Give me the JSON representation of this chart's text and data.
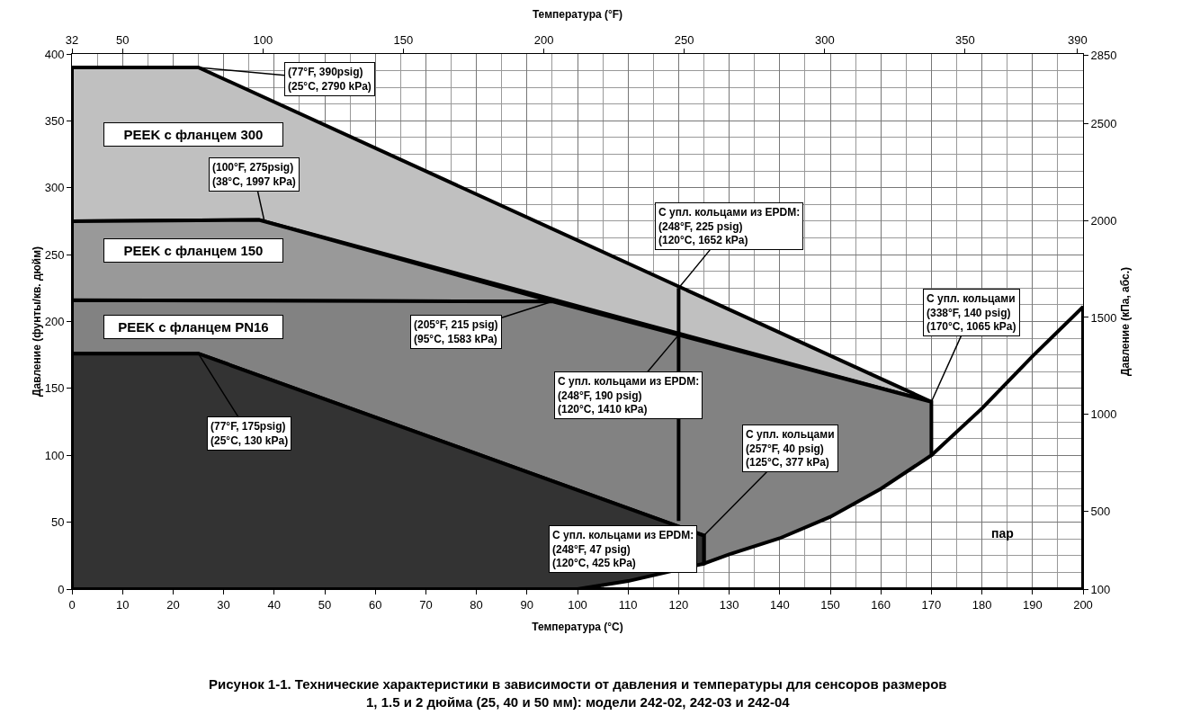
{
  "chart_data": {
    "type": "area",
    "title": "Рисунок 1-1. Технические характеристики в зависимости от давления и температуры для сенсоров размеров\n1, 1.5 и 2 дюйма (25, 40 и 50 мм): модели 242-02, 242-03 и 242-04",
    "xlabel": "Температура (°C)",
    "ylabel": "Давление (фунты/кв. дюйм)",
    "x2label": "Температура (°F)",
    "y2label": "Давление (кПа, абс.)",
    "xlim": [
      0,
      200
    ],
    "xticks": [
      0,
      10,
      20,
      30,
      40,
      50,
      60,
      70,
      80,
      90,
      100,
      110,
      120,
      130,
      140,
      150,
      160,
      170,
      180,
      190,
      200
    ],
    "ylim": [
      0,
      400
    ],
    "yticks": [
      0,
      50,
      100,
      150,
      200,
      250,
      300,
      350,
      400
    ],
    "x2lim": [
      32,
      392
    ],
    "x2ticks": [
      32,
      50,
      100,
      150,
      200,
      250,
      300,
      350,
      390
    ],
    "y2lim": [
      100,
      2858
    ],
    "y2ticks": [
      100,
      500,
      1000,
      1500,
      2000,
      2500,
      2850
    ],
    "grid": true,
    "legend": false,
    "series": [
      {
        "name": "PEEK с фланцем 300",
        "color": "#c0c0c0",
        "x": [
          0,
          25,
          170,
          37,
          0,
          0
        ],
        "values": [
          390,
          390,
          140,
          276,
          275,
          390
        ]
      },
      {
        "name": "PEEK с фланцем 150",
        "color": "#999999",
        "x": [
          0,
          37,
          95,
          0,
          0
        ],
        "values": [
          275,
          276,
          215,
          216,
          275
        ]
      },
      {
        "name": "PEEK с фланцем PN16",
        "color": "#828282",
        "x": [
          0,
          95,
          170,
          170,
          160,
          150,
          140,
          130,
          125,
          125,
          25,
          0,
          0
        ],
        "values": [
          216,
          215,
          140,
          100,
          75,
          54,
          38,
          26,
          19,
          40,
          176,
          176,
          216
        ]
      },
      {
        "color": "#333333",
        "x": [
          0,
          25,
          125,
          125,
          110,
          100,
          0,
          0
        ],
        "values": [
          176,
          176,
          40,
          19,
          6,
          0,
          0,
          176
        ]
      },
      {
        "type": "line",
        "color": "#000000",
        "x": [
          120,
          120
        ],
        "values": [
          225,
          51
        ]
      },
      {
        "type": "line",
        "color": "#000000",
        "x": [
          170,
          180,
          190,
          200,
          200,
          100
        ],
        "values": [
          100,
          135,
          174,
          211,
          0,
          0
        ]
      }
    ],
    "annotations": [
      {
        "text": "(77°F, 390psig)\n(25°C, 2790 kPa)",
        "x": 25,
        "y": 390
      },
      {
        "text": "(100°F, 275psig)\n(38°C, 1997 kPa)",
        "x": 38,
        "y": 276
      },
      {
        "text": "(205°F, 215 psig)\n(95°C, 1583 kPa)",
        "x": 95,
        "y": 215
      },
      {
        "text": "С упл. кольцами из EPDM:\n(248°F, 225 psig)\n(120°C, 1652 kPa)",
        "x": 120,
        "y": 225
      },
      {
        "text": "С упл. кольцами из EPDM:\n(248°F, 190 psig)\n(120°C, 1410 kPa)",
        "x": 120,
        "y": 190
      },
      {
        "text": "С упл. кольцами из EPDM:\n(248°F, 47 psig)\n(120°C, 425 kPa)",
        "x": 120,
        "y": 47
      },
      {
        "text": "С упл. кольцами\n(338°F, 140 psig)\n(170°C, 1065 kPa)",
        "x": 170,
        "y": 140
      },
      {
        "text": "С упл. кольцами\n(257°F, 40 psig)\n(125°C, 377 kPa)",
        "x": 125,
        "y": 40
      },
      {
        "text": "(77°F, 175psig)\n(25°C, 130 kPa)",
        "x": 25,
        "y": 176
      },
      "пар"
    ]
  }
}
